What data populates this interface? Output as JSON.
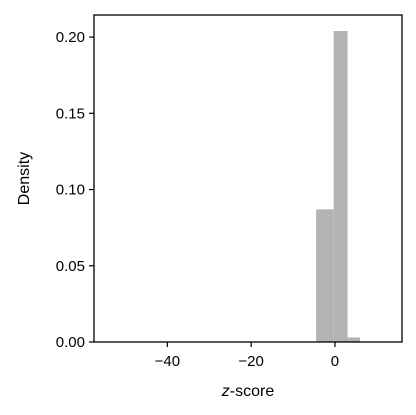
{
  "chart_data": {
    "type": "bar",
    "subtype": "histogram",
    "xlabel_prefix": "z",
    "xlabel_suffix": "-score",
    "ylabel": "Density",
    "xlim": [
      -57.5,
      16.0
    ],
    "ylim": [
      0.0,
      0.2145
    ],
    "x_ticks": [
      -40,
      -20,
      0
    ],
    "x_tick_labels": [
      "−40",
      "−20",
      "0"
    ],
    "y_ticks": [
      0.0,
      0.05,
      0.1,
      0.15,
      0.2
    ],
    "y_tick_labels": [
      "0.00",
      "0.05",
      "0.10",
      "0.15",
      "0.20"
    ],
    "bins": [
      {
        "x0": -4.5,
        "x1": -0.3,
        "density": 0.087
      },
      {
        "x0": -0.3,
        "x1": 3.0,
        "density": 0.204
      },
      {
        "x0": 3.0,
        "x1": 6.0,
        "density": 0.003
      }
    ],
    "grid": false,
    "colors": {
      "bar": "#b3b3b3",
      "axis": "#000000"
    }
  }
}
